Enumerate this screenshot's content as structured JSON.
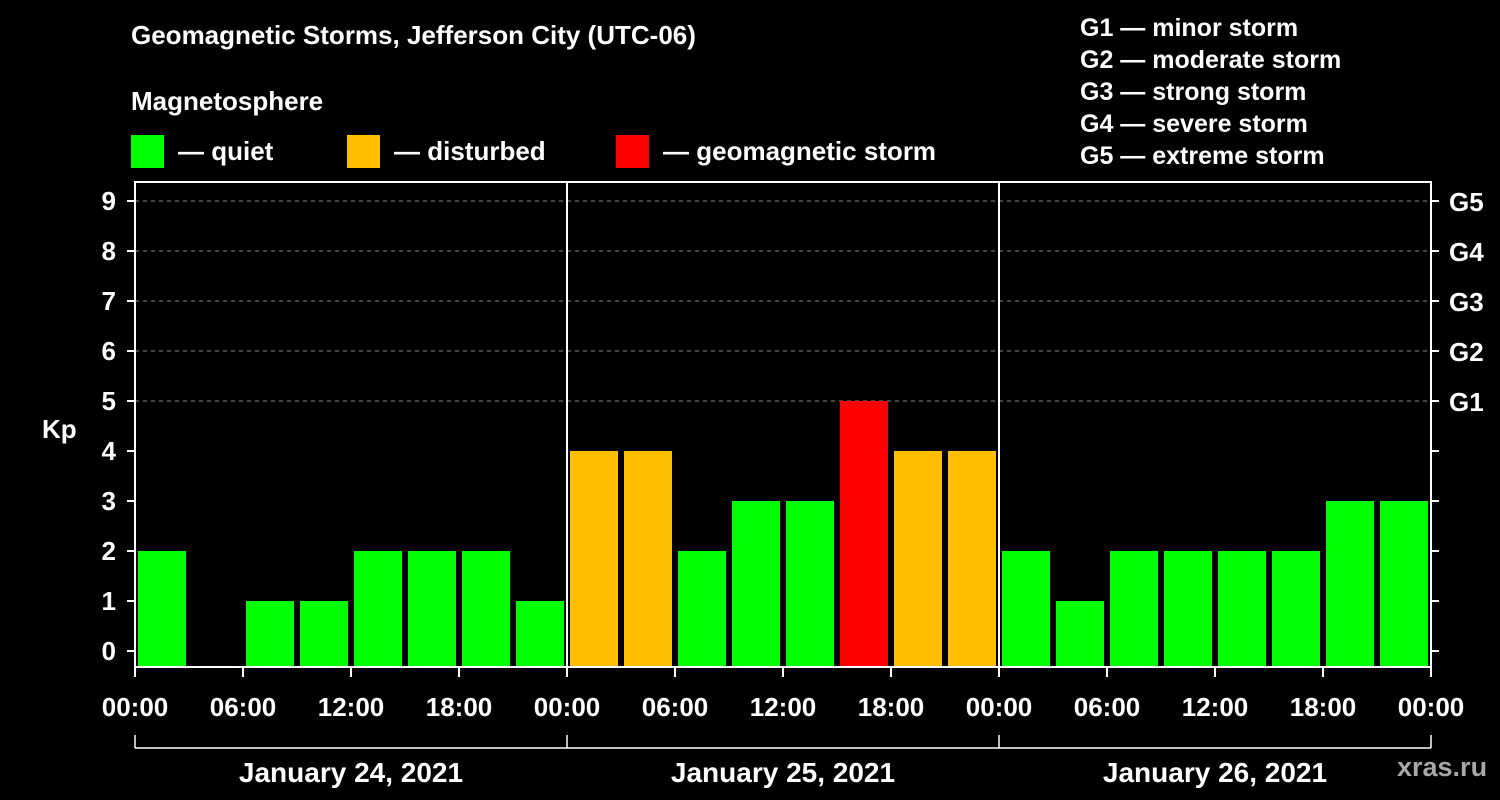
{
  "chart_data": {
    "type": "bar",
    "title": "Geomagnetic Storms, Jefferson City (UTC-06)",
    "subtitle": "Magnetosphere",
    "ylabel": "Kp",
    "ylim": [
      0,
      9
    ],
    "yticks": [
      0,
      1,
      2,
      3,
      4,
      5,
      6,
      7,
      8,
      9
    ],
    "right_ticks": [
      {
        "value": 5,
        "label": "G1"
      },
      {
        "value": 6,
        "label": "G2"
      },
      {
        "value": 7,
        "label": "G3"
      },
      {
        "value": 8,
        "label": "G4"
      },
      {
        "value": 9,
        "label": "G5"
      }
    ],
    "xticks": [
      "00:00",
      "06:00",
      "12:00",
      "18:00",
      "00:00",
      "06:00",
      "12:00",
      "18:00",
      "00:00",
      "06:00",
      "12:00",
      "18:00",
      "00:00"
    ],
    "days": [
      "January 24, 2021",
      "January 25, 2021",
      "January 26, 2021"
    ],
    "interval_hours": 3,
    "values": [
      2,
      0,
      1,
      1,
      2,
      2,
      2,
      1,
      4,
      4,
      2,
      3,
      3,
      5,
      4,
      4,
      2,
      1,
      2,
      2,
      2,
      2,
      3,
      3
    ],
    "statuses": [
      "quiet",
      "quiet",
      "quiet",
      "quiet",
      "quiet",
      "quiet",
      "quiet",
      "quiet",
      "disturbed",
      "disturbed",
      "quiet",
      "quiet",
      "quiet",
      "storm",
      "disturbed",
      "disturbed",
      "quiet",
      "quiet",
      "quiet",
      "quiet",
      "quiet",
      "quiet",
      "quiet",
      "quiet"
    ],
    "colors": {
      "quiet": "#00ff00",
      "disturbed": "#ffbf00",
      "storm": "#ff0000"
    },
    "legend": [
      {
        "key": "quiet",
        "label": "— quiet"
      },
      {
        "key": "disturbed",
        "label": "— disturbed"
      },
      {
        "key": "storm",
        "label": "— geomagnetic storm"
      }
    ],
    "storm_scale": [
      "G1 — minor storm",
      "G2 — moderate storm",
      "G3 — strong storm",
      "G4 — severe storm",
      "G5 — extreme storm"
    ]
  },
  "watermark": "xras.ru"
}
